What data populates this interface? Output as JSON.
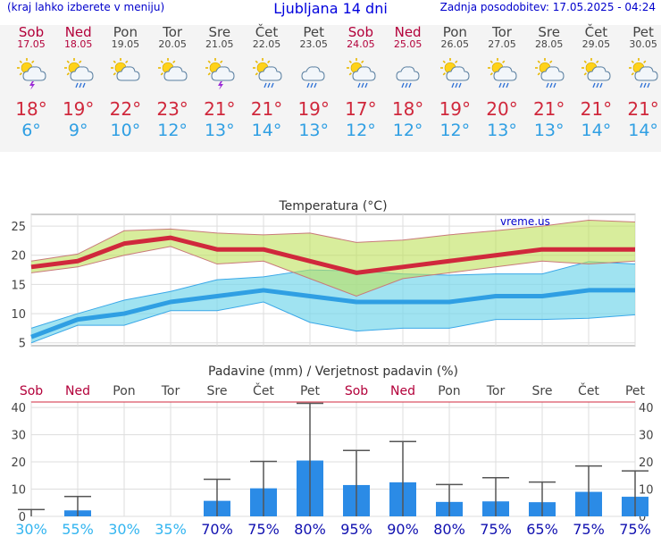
{
  "header": {
    "left": "(kraj lahko izberete v meniju)",
    "title": "Ljubljana 14 dni",
    "right": "Zadnja posodobitev: 17.05.2025 - 04:24"
  },
  "days": [
    {
      "name": "Sob",
      "date": "17.05",
      "weekend": true,
      "icon": "sun-cloud-thunder-icon",
      "tmax": "18°",
      "tmin": "6°"
    },
    {
      "name": "Ned",
      "date": "18.05",
      "weekend": true,
      "icon": "sun-cloud-rain-icon",
      "tmax": "19°",
      "tmin": "9°"
    },
    {
      "name": "Pon",
      "date": "19.05",
      "weekend": false,
      "icon": "sun-cloud-icon",
      "tmax": "22°",
      "tmin": "10°"
    },
    {
      "name": "Tor",
      "date": "20.05",
      "weekend": false,
      "icon": "sun-cloud-icon",
      "tmax": "23°",
      "tmin": "12°"
    },
    {
      "name": "Sre",
      "date": "21.05",
      "weekend": false,
      "icon": "sun-cloud-thunder-icon",
      "tmax": "21°",
      "tmin": "13°"
    },
    {
      "name": "Čet",
      "date": "22.05",
      "weekend": false,
      "icon": "sun-cloud-rain-icon",
      "tmax": "21°",
      "tmin": "14°"
    },
    {
      "name": "Pet",
      "date": "23.05",
      "weekend": false,
      "icon": "cloud-rain-icon",
      "tmax": "19°",
      "tmin": "13°"
    },
    {
      "name": "Sob",
      "date": "24.05",
      "weekend": true,
      "icon": "sun-cloud-rain-icon",
      "tmax": "17°",
      "tmin": "12°"
    },
    {
      "name": "Ned",
      "date": "25.05",
      "weekend": true,
      "icon": "cloud-rain-icon",
      "tmax": "18°",
      "tmin": "12°"
    },
    {
      "name": "Pon",
      "date": "26.05",
      "weekend": false,
      "icon": "sun-cloud-rain-icon",
      "tmax": "19°",
      "tmin": "12°"
    },
    {
      "name": "Tor",
      "date": "27.05",
      "weekend": false,
      "icon": "sun-cloud-rain-icon",
      "tmax": "20°",
      "tmin": "13°"
    },
    {
      "name": "Sre",
      "date": "28.05",
      "weekend": false,
      "icon": "sun-cloud-rain-icon",
      "tmax": "21°",
      "tmin": "13°"
    },
    {
      "name": "Čet",
      "date": "29.05",
      "weekend": false,
      "icon": "sun-cloud-rain-icon",
      "tmax": "21°",
      "tmin": "14°"
    },
    {
      "name": "Pet",
      "date": "30.05",
      "weekend": false,
      "icon": "sun-cloud-rain-icon",
      "tmax": "21°",
      "tmin": "14°"
    }
  ],
  "colors": {
    "weekend": "#b3003a",
    "weekday": "#444444",
    "tmax": "#d0283c",
    "tmin": "#2f9fe3",
    "precip_bar": "#2b8be6",
    "prob_high": "#1010b0",
    "prob_low": "#33b5f0"
  },
  "chart_data": [
    {
      "type": "line",
      "title": "Temperatura (°C)",
      "watermark": "vreme.us",
      "ylim": [
        4.5,
        27
      ],
      "yticks": [
        5,
        10,
        15,
        20,
        25
      ],
      "x": [
        0,
        1,
        2,
        3,
        4,
        5,
        6,
        7,
        8,
        9,
        10,
        11,
        12,
        13
      ],
      "grid": true,
      "series": [
        {
          "role": "max",
          "color": "#d0283c",
          "values": [
            18,
            19,
            22,
            23,
            21,
            21,
            19,
            17,
            18,
            19,
            20,
            21,
            21,
            21
          ],
          "band_low": [
            17,
            18,
            20,
            21.5,
            18.5,
            19,
            16,
            13,
            16,
            17,
            18,
            19,
            18.5,
            19
          ],
          "band_high": [
            19,
            20.2,
            24.2,
            24.5,
            23.8,
            23.5,
            23.8,
            22.2,
            22.6,
            23.5,
            24.2,
            25,
            26,
            25.7
          ]
        },
        {
          "role": "min",
          "color": "#2f9fe3",
          "values": [
            6,
            9,
            10,
            12,
            13,
            14,
            13,
            12,
            12,
            12,
            13,
            13,
            14,
            14
          ],
          "band_low": [
            5,
            8,
            8,
            10.5,
            10.5,
            12,
            8.5,
            7,
            7.5,
            7.5,
            9,
            9,
            9.2,
            9.8
          ],
          "band_high": [
            7.5,
            10,
            12.3,
            13.8,
            15.8,
            16.3,
            17.5,
            17.3,
            16.8,
            16.6,
            16.8,
            16.8,
            18.9,
            18.5
          ]
        }
      ]
    },
    {
      "type": "bar",
      "title": "Padavine (mm) / Verjetnost padavin (%)",
      "ylim": [
        0,
        42
      ],
      "yticks": [
        0,
        10,
        20,
        30,
        40
      ],
      "categories": [
        "Sob",
        "Ned",
        "Pon",
        "Tor",
        "Sre",
        "Čet",
        "Pet",
        "Sob",
        "Ned",
        "Pon",
        "Tor",
        "Sre",
        "Čet",
        "Pet"
      ],
      "weekend": [
        true,
        true,
        false,
        false,
        false,
        false,
        false,
        true,
        true,
        false,
        false,
        false,
        false,
        false
      ],
      "values": [
        0,
        2.2,
        0,
        0,
        5.7,
        10.3,
        20.5,
        11.5,
        12.5,
        5.3,
        5.5,
        5.2,
        9,
        7.2
      ],
      "error_high": [
        2.5,
        7.3,
        0,
        0,
        13.6,
        20.2,
        41.5,
        24.2,
        27.5,
        11.7,
        14.2,
        12.6,
        18.5,
        16.7
      ],
      "probability": [
        "30%",
        "55%",
        "30%",
        "35%",
        "70%",
        "75%",
        "80%",
        "95%",
        "90%",
        "80%",
        "75%",
        "65%",
        "75%",
        "75%"
      ],
      "probability_high": [
        false,
        false,
        false,
        false,
        true,
        true,
        true,
        true,
        true,
        true,
        true,
        true,
        true,
        true
      ]
    }
  ]
}
